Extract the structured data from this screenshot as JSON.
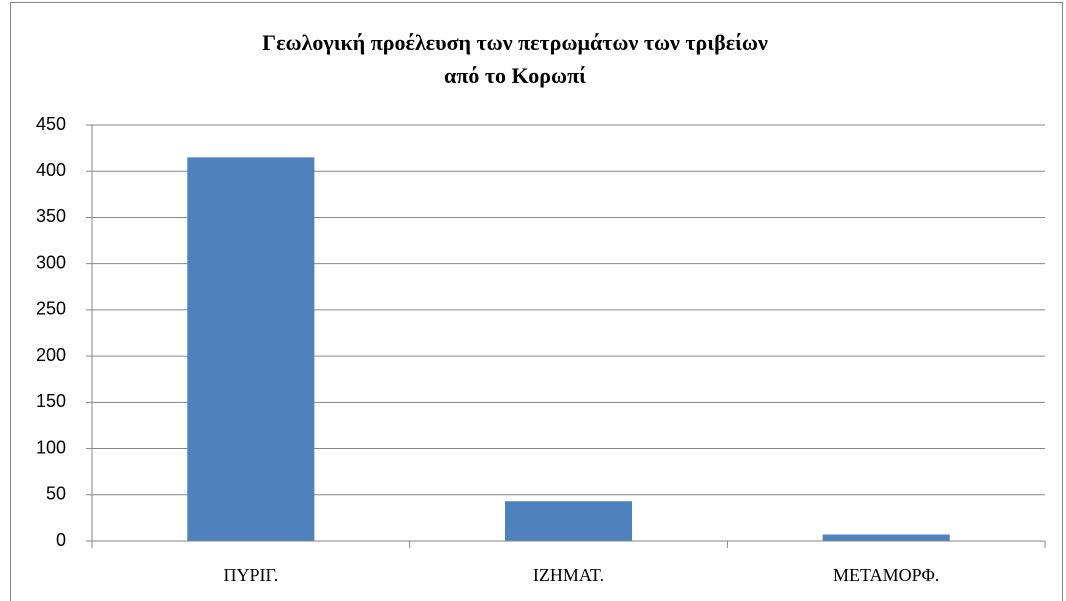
{
  "chart_data": {
    "type": "bar",
    "title": [
      "Γεωλογική προέλευση των πετρωμάτων των τριβείων",
      "από το Κορωπί"
    ],
    "categories": [
      "ΠΥΡΙΓ.",
      "ΙΖΗΜΑΤ.",
      "ΜΕΤΑΜΟΡΦ."
    ],
    "values": [
      415,
      43,
      7
    ],
    "color": "#4f81bd",
    "ylim": [
      0,
      450
    ],
    "yticks": [
      0,
      50,
      100,
      150,
      200,
      250,
      300,
      350,
      400,
      450
    ],
    "grid": true
  }
}
